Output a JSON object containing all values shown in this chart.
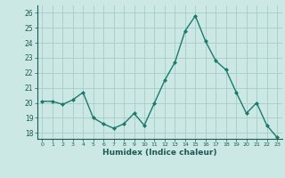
{
  "x": [
    0,
    1,
    2,
    3,
    4,
    5,
    6,
    7,
    8,
    9,
    10,
    11,
    12,
    13,
    14,
    15,
    16,
    17,
    18,
    19,
    20,
    21,
    22,
    23
  ],
  "y": [
    20.1,
    20.1,
    19.9,
    20.2,
    20.7,
    19.0,
    18.6,
    18.3,
    18.6,
    19.3,
    18.5,
    20.0,
    21.5,
    22.7,
    24.8,
    25.8,
    24.1,
    22.8,
    22.2,
    20.7,
    19.3,
    20.0,
    18.5,
    17.7
  ],
  "line_color": "#1a7a6e",
  "marker": "D",
  "marker_size": 2.0,
  "bg_color": "#cce8e4",
  "grid_color": "#a8ccc8",
  "xlabel": "Humidex (Indice chaleur)",
  "ylabel_ticks": [
    18,
    19,
    20,
    21,
    22,
    23,
    24,
    25,
    26
  ],
  "xlim": [
    -0.5,
    23.5
  ],
  "ylim": [
    17.6,
    26.5
  ]
}
